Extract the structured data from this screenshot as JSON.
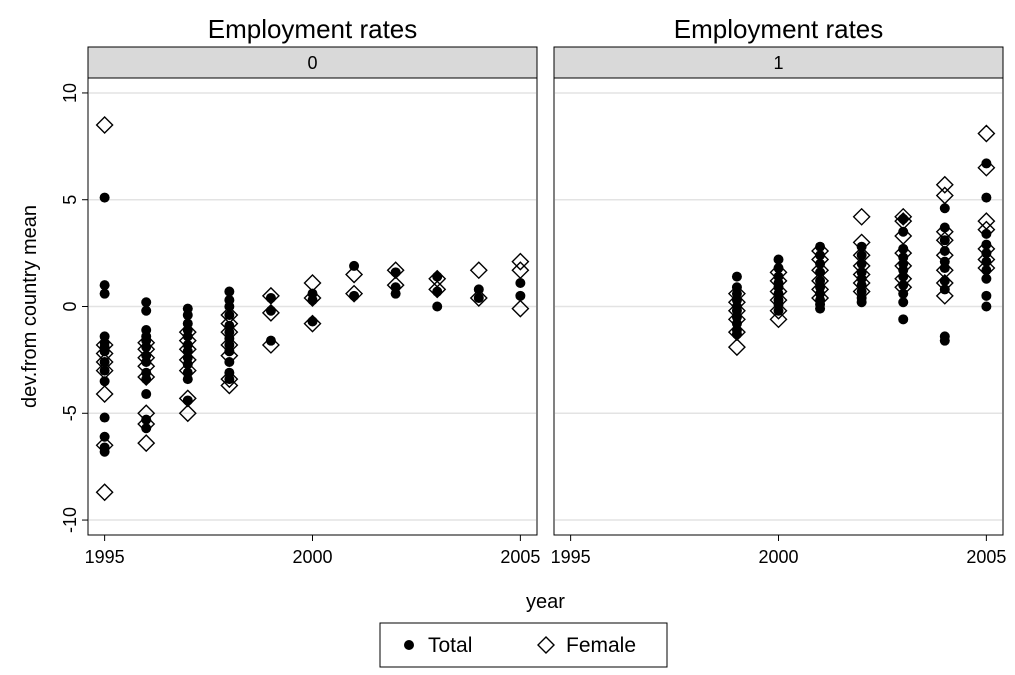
{
  "chart_data": {
    "type": "scatter",
    "ylabel": "dev.from country mean",
    "xlabel": "year",
    "x_ticks": [
      1995,
      2000,
      2005
    ],
    "y_ticks": [
      -10,
      -5,
      0,
      5,
      10
    ],
    "xlim": [
      1994.6,
      2005.4
    ],
    "ylim": [
      -10.7,
      10.7
    ],
    "grid": true,
    "legend_position": "bottom-center",
    "legend": [
      {
        "label": "Total",
        "marker": "filled-circle"
      },
      {
        "label": "Female",
        "marker": "hollow-diamond"
      }
    ],
    "panels": [
      {
        "title": "Employment rates",
        "strip_label": "0",
        "series": [
          {
            "name": "Total",
            "points": [
              [
                1995,
                5.1
              ],
              [
                1995,
                1.0
              ],
              [
                1995,
                0.6
              ],
              [
                1995,
                -1.4
              ],
              [
                1995,
                -1.7
              ],
              [
                1995,
                -1.9
              ],
              [
                1995,
                -2.1
              ],
              [
                1995,
                -2.6
              ],
              [
                1995,
                -3.0
              ],
              [
                1995,
                -3.5
              ],
              [
                1995,
                -5.2
              ],
              [
                1995,
                -6.1
              ],
              [
                1995,
                -6.6
              ],
              [
                1995,
                -6.8
              ],
              [
                1996,
                0.2
              ],
              [
                1996,
                -0.2
              ],
              [
                1996,
                -1.1
              ],
              [
                1996,
                -1.4
              ],
              [
                1996,
                -1.6
              ],
              [
                1996,
                -1.9
              ],
              [
                1996,
                -2.3
              ],
              [
                1996,
                -2.6
              ],
              [
                1996,
                -3.1
              ],
              [
                1996,
                -3.4
              ],
              [
                1996,
                -4.1
              ],
              [
                1996,
                -5.3
              ],
              [
                1996,
                -5.7
              ],
              [
                1997,
                -0.1
              ],
              [
                1997,
                -0.4
              ],
              [
                1997,
                -0.8
              ],
              [
                1997,
                -1.1
              ],
              [
                1997,
                -1.4
              ],
              [
                1997,
                -1.8
              ],
              [
                1997,
                -2.1
              ],
              [
                1997,
                -2.4
              ],
              [
                1997,
                -2.7
              ],
              [
                1997,
                -3.1
              ],
              [
                1997,
                -3.4
              ],
              [
                1997,
                -4.4
              ],
              [
                1998,
                0.7
              ],
              [
                1998,
                0.3
              ],
              [
                1998,
                0.0
              ],
              [
                1998,
                -0.4
              ],
              [
                1998,
                -0.9
              ],
              [
                1998,
                -1.2
              ],
              [
                1998,
                -1.5
              ],
              [
                1998,
                -1.8
              ],
              [
                1998,
                -2.1
              ],
              [
                1998,
                -2.6
              ],
              [
                1998,
                -3.1
              ],
              [
                1998,
                -3.4
              ],
              [
                1999,
                0.4
              ],
              [
                1999,
                -0.2
              ],
              [
                1999,
                -1.6
              ],
              [
                2000,
                0.6
              ],
              [
                2000,
                0.3
              ],
              [
                2000,
                -0.7
              ],
              [
                2001,
                1.9
              ],
              [
                2001,
                0.5
              ],
              [
                2002,
                1.6
              ],
              [
                2002,
                0.9
              ],
              [
                2002,
                0.6
              ],
              [
                2003,
                1.4
              ],
              [
                2003,
                0.7
              ],
              [
                2003,
                0.0
              ],
              [
                2004,
                0.8
              ],
              [
                2004,
                0.4
              ],
              [
                2005,
                1.1
              ],
              [
                2005,
                0.5
              ]
            ]
          },
          {
            "name": "Female",
            "points": [
              [
                1995,
                8.5
              ],
              [
                1995,
                -1.8
              ],
              [
                1995,
                -2.2
              ],
              [
                1995,
                -2.6
              ],
              [
                1995,
                -3.0
              ],
              [
                1995,
                -4.1
              ],
              [
                1995,
                -6.5
              ],
              [
                1995,
                -8.7
              ],
              [
                1996,
                -1.7
              ],
              [
                1996,
                -2.0
              ],
              [
                1996,
                -2.4
              ],
              [
                1996,
                -2.8
              ],
              [
                1996,
                -3.3
              ],
              [
                1996,
                -5.0
              ],
              [
                1996,
                -5.5
              ],
              [
                1996,
                -6.4
              ],
              [
                1997,
                -1.2
              ],
              [
                1997,
                -1.6
              ],
              [
                1997,
                -2.0
              ],
              [
                1997,
                -2.5
              ],
              [
                1997,
                -3.0
              ],
              [
                1997,
                -4.3
              ],
              [
                1997,
                -5.0
              ],
              [
                1998,
                -0.4
              ],
              [
                1998,
                -0.8
              ],
              [
                1998,
                -1.2
              ],
              [
                1998,
                -1.8
              ],
              [
                1998,
                -2.3
              ],
              [
                1998,
                -3.4
              ],
              [
                1998,
                -3.7
              ],
              [
                1999,
                0.5
              ],
              [
                1999,
                -0.3
              ],
              [
                1999,
                -1.8
              ],
              [
                2000,
                1.1
              ],
              [
                2000,
                0.4
              ],
              [
                2000,
                -0.8
              ],
              [
                2001,
                1.5
              ],
              [
                2001,
                0.6
              ],
              [
                2002,
                1.7
              ],
              [
                2002,
                1.0
              ],
              [
                2003,
                1.3
              ],
              [
                2003,
                0.8
              ],
              [
                2004,
                1.7
              ],
              [
                2004,
                0.4
              ],
              [
                2005,
                2.1
              ],
              [
                2005,
                1.7
              ],
              [
                2005,
                -0.1
              ]
            ]
          }
        ]
      },
      {
        "title": "Employment rates",
        "strip_label": "1",
        "series": [
          {
            "name": "Total",
            "points": [
              [
                1999,
                1.4
              ],
              [
                1999,
                0.9
              ],
              [
                1999,
                0.6
              ],
              [
                1999,
                0.3
              ],
              [
                1999,
                0.0
              ],
              [
                1999,
                -0.2
              ],
              [
                1999,
                -0.5
              ],
              [
                1999,
                -0.8
              ],
              [
                1999,
                -1.1
              ],
              [
                1999,
                -1.3
              ],
              [
                2000,
                2.2
              ],
              [
                2000,
                1.8
              ],
              [
                2000,
                1.4
              ],
              [
                2000,
                1.1
              ],
              [
                2000,
                0.9
              ],
              [
                2000,
                0.6
              ],
              [
                2000,
                0.3
              ],
              [
                2000,
                0.1
              ],
              [
                2000,
                -0.2
              ],
              [
                2001,
                2.8
              ],
              [
                2001,
                2.4
              ],
              [
                2001,
                2.0
              ],
              [
                2001,
                1.6
              ],
              [
                2001,
                1.2
              ],
              [
                2001,
                0.9
              ],
              [
                2001,
                0.6
              ],
              [
                2001,
                0.3
              ],
              [
                2001,
                0.1
              ],
              [
                2001,
                -0.1
              ],
              [
                2002,
                2.8
              ],
              [
                2002,
                2.4
              ],
              [
                2002,
                2.0
              ],
              [
                2002,
                1.6
              ],
              [
                2002,
                1.3
              ],
              [
                2002,
                1.0
              ],
              [
                2002,
                0.7
              ],
              [
                2002,
                0.4
              ],
              [
                2002,
                0.2
              ],
              [
                2003,
                4.1
              ],
              [
                2003,
                3.5
              ],
              [
                2003,
                2.7
              ],
              [
                2003,
                2.3
              ],
              [
                2003,
                2.0
              ],
              [
                2003,
                1.7
              ],
              [
                2003,
                1.4
              ],
              [
                2003,
                1.0
              ],
              [
                2003,
                0.6
              ],
              [
                2003,
                0.2
              ],
              [
                2003,
                -0.6
              ],
              [
                2004,
                4.6
              ],
              [
                2004,
                3.7
              ],
              [
                2004,
                3.1
              ],
              [
                2004,
                2.6
              ],
              [
                2004,
                2.1
              ],
              [
                2004,
                1.8
              ],
              [
                2004,
                1.2
              ],
              [
                2004,
                0.8
              ],
              [
                2004,
                -1.4
              ],
              [
                2004,
                -1.6
              ],
              [
                2005,
                6.7
              ],
              [
                2005,
                5.1
              ],
              [
                2005,
                3.4
              ],
              [
                2005,
                2.9
              ],
              [
                2005,
                2.5
              ],
              [
                2005,
                2.1
              ],
              [
                2005,
                1.7
              ],
              [
                2005,
                1.3
              ],
              [
                2005,
                0.5
              ],
              [
                2005,
                0.0
              ]
            ]
          },
          {
            "name": "Female",
            "points": [
              [
                1999,
                0.6
              ],
              [
                1999,
                0.2
              ],
              [
                1999,
                -0.2
              ],
              [
                1999,
                -0.6
              ],
              [
                1999,
                -1.2
              ],
              [
                1999,
                -1.9
              ],
              [
                2000,
                1.6
              ],
              [
                2000,
                1.2
              ],
              [
                2000,
                0.7
              ],
              [
                2000,
                0.3
              ],
              [
                2000,
                -0.2
              ],
              [
                2000,
                -0.6
              ],
              [
                2001,
                2.6
              ],
              [
                2001,
                2.2
              ],
              [
                2001,
                1.7
              ],
              [
                2001,
                1.2
              ],
              [
                2001,
                0.8
              ],
              [
                2001,
                0.4
              ],
              [
                2002,
                4.2
              ],
              [
                2002,
                3.0
              ],
              [
                2002,
                2.4
              ],
              [
                2002,
                1.9
              ],
              [
                2002,
                1.5
              ],
              [
                2002,
                1.1
              ],
              [
                2002,
                0.7
              ],
              [
                2003,
                4.2
              ],
              [
                2003,
                4.0
              ],
              [
                2003,
                3.3
              ],
              [
                2003,
                2.5
              ],
              [
                2003,
                1.9
              ],
              [
                2003,
                1.3
              ],
              [
                2003,
                0.9
              ],
              [
                2004,
                5.7
              ],
              [
                2004,
                5.2
              ],
              [
                2004,
                3.5
              ],
              [
                2004,
                3.1
              ],
              [
                2004,
                2.4
              ],
              [
                2004,
                1.7
              ],
              [
                2004,
                1.1
              ],
              [
                2004,
                0.5
              ],
              [
                2005,
                8.1
              ],
              [
                2005,
                6.5
              ],
              [
                2005,
                4.0
              ],
              [
                2005,
                3.6
              ],
              [
                2005,
                2.7
              ],
              [
                2005,
                2.2
              ],
              [
                2005,
                1.8
              ]
            ]
          }
        ]
      }
    ]
  }
}
